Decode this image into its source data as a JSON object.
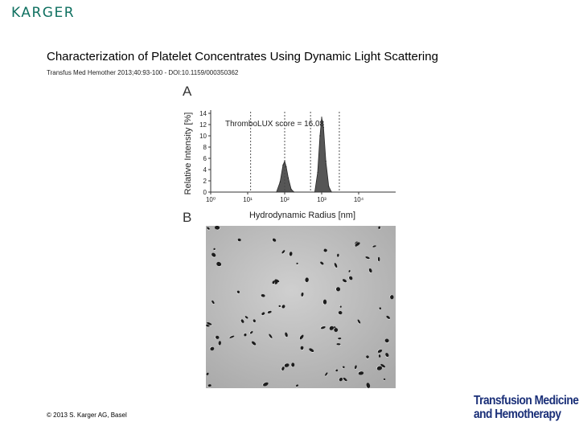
{
  "logo": {
    "text": "KARGER"
  },
  "title": "Characterization of Platelet Concentrates Using Dynamic Light Scattering",
  "citation": "Transfus Med Hemother 2013;40:93-100 - DOI:10.1159/000350362",
  "copyright": "© 2013 S. Karger AG, Basel",
  "journal": {
    "line1": "Transfusion Medicine",
    "line2": "and Hemotherapy"
  },
  "panels": {
    "a": "A",
    "b": "B"
  },
  "chart_data": {
    "type": "area",
    "title": "",
    "annotation": "ThromboLUX score = 16.08",
    "xlabel": "Hydrodynamic Radius [nm]",
    "ylabel": "Relative Intensity [%]",
    "xscale": "log",
    "xlim": [
      1,
      100000
    ],
    "ylim": [
      0,
      14
    ],
    "xticks": [
      {
        "value": 1,
        "label": "10⁰"
      },
      {
        "value": 10,
        "label": "10¹"
      },
      {
        "value": 100,
        "label": "10²"
      },
      {
        "value": 1000,
        "label": "10³"
      },
      {
        "value": 10000,
        "label": "10⁴"
      }
    ],
    "yticks": [
      0,
      2,
      4,
      6,
      8,
      10,
      12,
      14
    ],
    "grid": false,
    "reference_lines": [
      12,
      100,
      500,
      3000
    ],
    "series": [
      {
        "x": [
          60,
          75,
          90,
          100,
          110,
          125,
          150,
          180
        ],
        "y": [
          0,
          1.8,
          4.8,
          5.5,
          4.5,
          2.5,
          0.5,
          0
        ]
      },
      {
        "x": [
          650,
          780,
          900,
          1000,
          1120,
          1300,
          1550,
          1850
        ],
        "y": [
          0,
          3.5,
          10,
          13.3,
          11.5,
          5.5,
          1,
          0
        ]
      }
    ]
  },
  "micrograph": {
    "alt": "phase-contrast micrograph of platelets"
  }
}
